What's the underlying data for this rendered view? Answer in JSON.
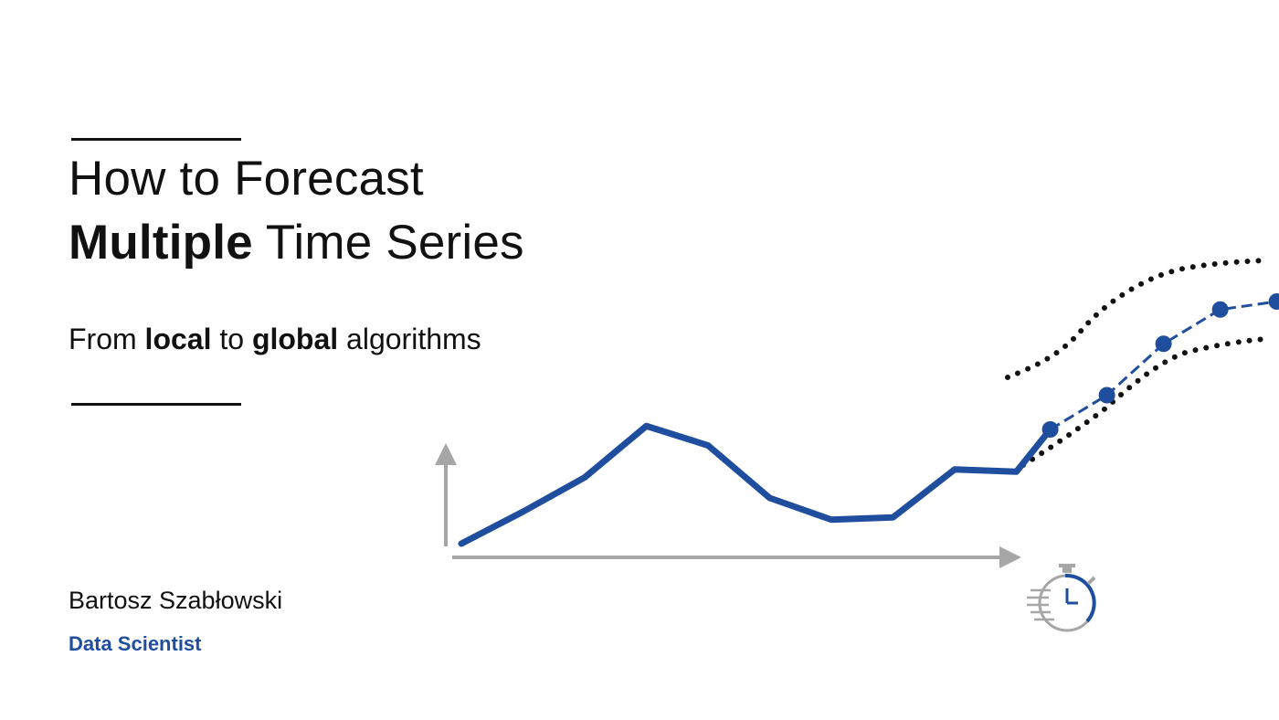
{
  "title": {
    "line1": "How to Forecast",
    "line2_bold": "Multiple",
    "line2_rest": " Time Series"
  },
  "subtitle": {
    "part1": "From ",
    "bold1": "local",
    "part2": " to ",
    "bold2": "global",
    "part3": " algorithms"
  },
  "author": {
    "name": "Bartosz Szabłowski",
    "role": "Data Scientist"
  },
  "colors": {
    "accent": "#1f4e9f",
    "axis": "#a6a6a6",
    "text": "#111111",
    "band": "#111111"
  },
  "icons": [
    "stopwatch-icon"
  ],
  "chart_data": {
    "type": "line",
    "series": [
      {
        "values": [
          0.0,
          2.8,
          5.8,
          10.3,
          8.6,
          4.0,
          2.1,
          2.3,
          6.5,
          6.3
        ]
      },
      {
        "values": [
          10.0,
          13.0,
          17.5,
          20.5,
          21.2
        ]
      }
    ],
    "title": "",
    "xlabel": "",
    "ylabel": "",
    "grid": false
  }
}
